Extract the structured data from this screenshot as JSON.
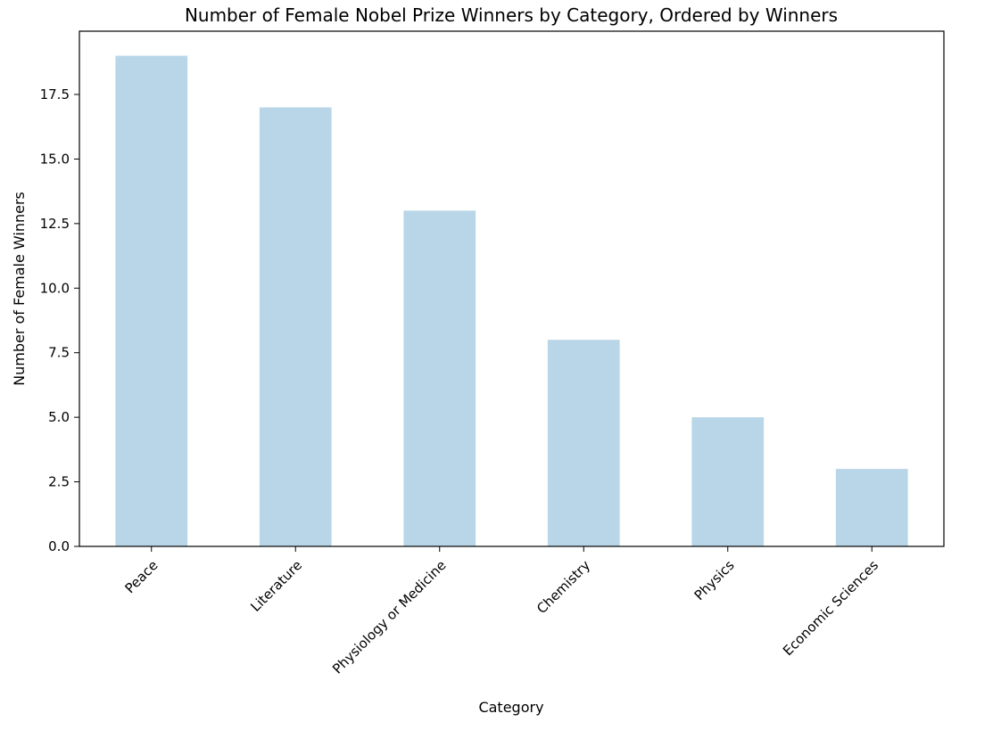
{
  "chart_data": {
    "type": "bar",
    "title": "Number of Female Nobel Prize Winners by Category, Ordered by Winners",
    "xlabel": "Category",
    "ylabel": "Number of Female Winners",
    "categories": [
      "Peace",
      "Literature",
      "Physiology or Medicine",
      "Chemistry",
      "Physics",
      "Economic Sciences"
    ],
    "values": [
      19,
      17,
      13,
      8,
      5,
      3
    ],
    "ylim": [
      0,
      19.95
    ],
    "yticks": [
      "0.0",
      "2.5",
      "5.0",
      "7.5",
      "10.0",
      "12.5",
      "15.0",
      "17.5"
    ],
    "ytick_values": [
      0,
      2.5,
      5,
      7.5,
      10,
      12.5,
      15,
      17.5
    ],
    "bar_color": "#b9d6e8",
    "grid": false,
    "legend": "none"
  }
}
